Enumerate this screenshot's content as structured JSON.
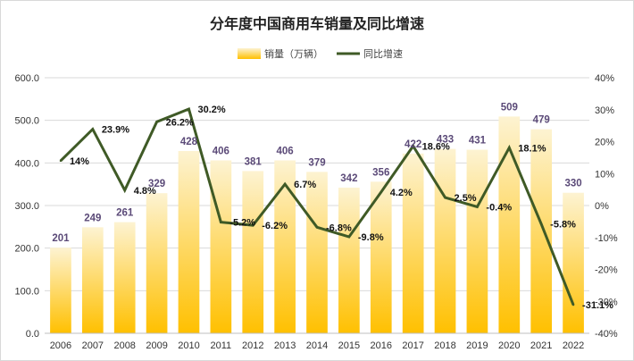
{
  "chart_data": {
    "type": "bar",
    "title": "分年度中国商用车销量及同比增速",
    "categories": [
      "2006",
      "2007",
      "2008",
      "2009",
      "2010",
      "2011",
      "2012",
      "2013",
      "2014",
      "2015",
      "2016",
      "2017",
      "2018",
      "2019",
      "2020",
      "2021",
      "2022"
    ],
    "series": [
      {
        "name": "销量（万辆）",
        "type": "bar",
        "axis": "left",
        "values": [
          201,
          249,
          261,
          329,
          428,
          406,
          381,
          406,
          379,
          342,
          356,
          422,
          433,
          431,
          509,
          479,
          330
        ],
        "labels": [
          "201",
          "249",
          "261",
          "329",
          "428",
          "406",
          "381",
          "406",
          "379",
          "342",
          "356",
          "422",
          "433",
          "431",
          "509",
          "479",
          "330"
        ]
      },
      {
        "name": "同比增速",
        "type": "line",
        "axis": "right",
        "values": [
          14,
          23.9,
          4.8,
          26.2,
          30.2,
          -5.2,
          -6.2,
          6.7,
          -6.8,
          -9.8,
          4.2,
          18.6,
          2.5,
          -0.4,
          18.1,
          -5.8,
          -31.1
        ],
        "labels": [
          "14%",
          "23.9%",
          "4.8%",
          "26.2%",
          "30.2%",
          "-5.2%",
          "-6.2%",
          "6.7%",
          "-6.8%",
          "-9.8%",
          "4.2%",
          "18.6%",
          "2.5%",
          "-0.4%",
          "18.1%",
          "-5.8%",
          "-31.1%"
        ]
      }
    ],
    "y_left": {
      "min": 0,
      "max": 600,
      "ticks": [
        "0.0",
        "100.0",
        "200.0",
        "300.0",
        "400.0",
        "500.0",
        "600.0"
      ]
    },
    "y_right": {
      "min": -40,
      "max": 40,
      "ticks": [
        "-40%",
        "-30%",
        "-20%",
        "-10%",
        "0%",
        "10%",
        "20%",
        "30%",
        "40%"
      ]
    },
    "grid": true,
    "legend_position": "top-center",
    "colors": {
      "bar_top": "#fdf3d2",
      "bar_bottom": "#ffc000",
      "line": "#3f5a26",
      "grid": "#d9d9d9",
      "bar_label": "#5b4a78"
    }
  }
}
